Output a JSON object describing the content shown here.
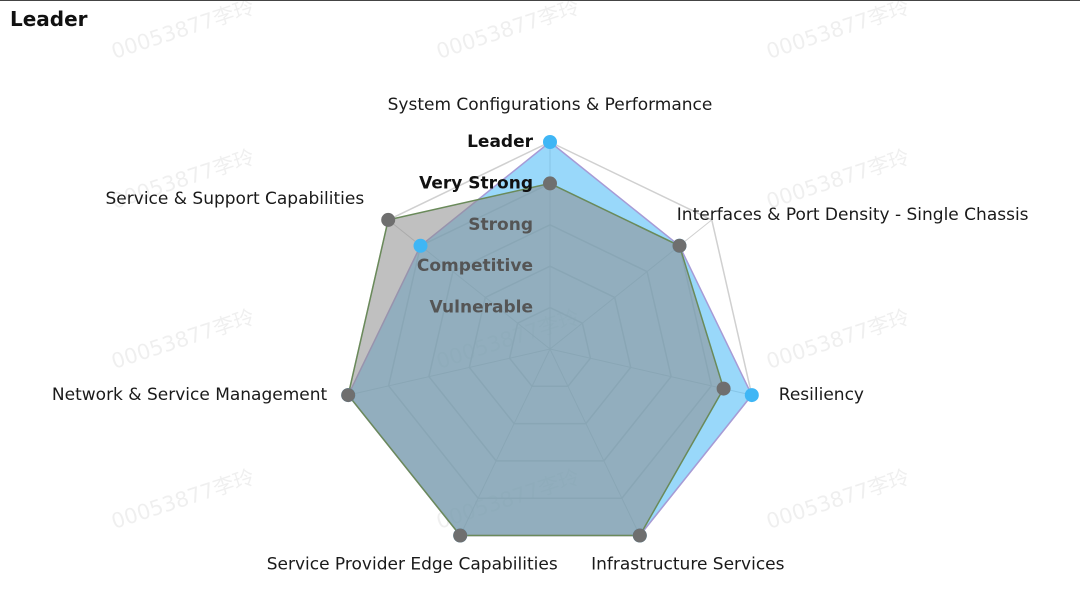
{
  "page": {
    "title": "Leader"
  },
  "watermark": "00053877李玲",
  "chart_data": {
    "type": "radar",
    "axes": [
      "System Configurations & Performance",
      "Interfaces & Port Density - Single Chassis",
      "Resiliency",
      "Infrastructure Services",
      "Service Provider Edge Capabilities",
      "Network & Service Management",
      "Service & Support Capabilities"
    ],
    "levels": [
      "Vulnerable",
      "Competitive",
      "Strong",
      "Very Strong",
      "Leader"
    ],
    "range": [
      0,
      5
    ],
    "series": [
      {
        "values": [
          5,
          4,
          5,
          5,
          5,
          5,
          4
        ],
        "color": "#3fb6f5",
        "fill": "#55bef7",
        "fill_opacity": 0.6
      },
      {
        "values": [
          4,
          4,
          4.3,
          5,
          5,
          5,
          5
        ],
        "color": "#6a8a5a",
        "fill": "#8c8c8c",
        "fill_opacity": 0.55,
        "marker_color": "#6f6f6f"
      }
    ],
    "grid": true,
    "grid_color": "#d0d0d0",
    "level_label_colors": [
      "#555555",
      "#555555",
      "#555555",
      "#111111",
      "#111111"
    ]
  }
}
